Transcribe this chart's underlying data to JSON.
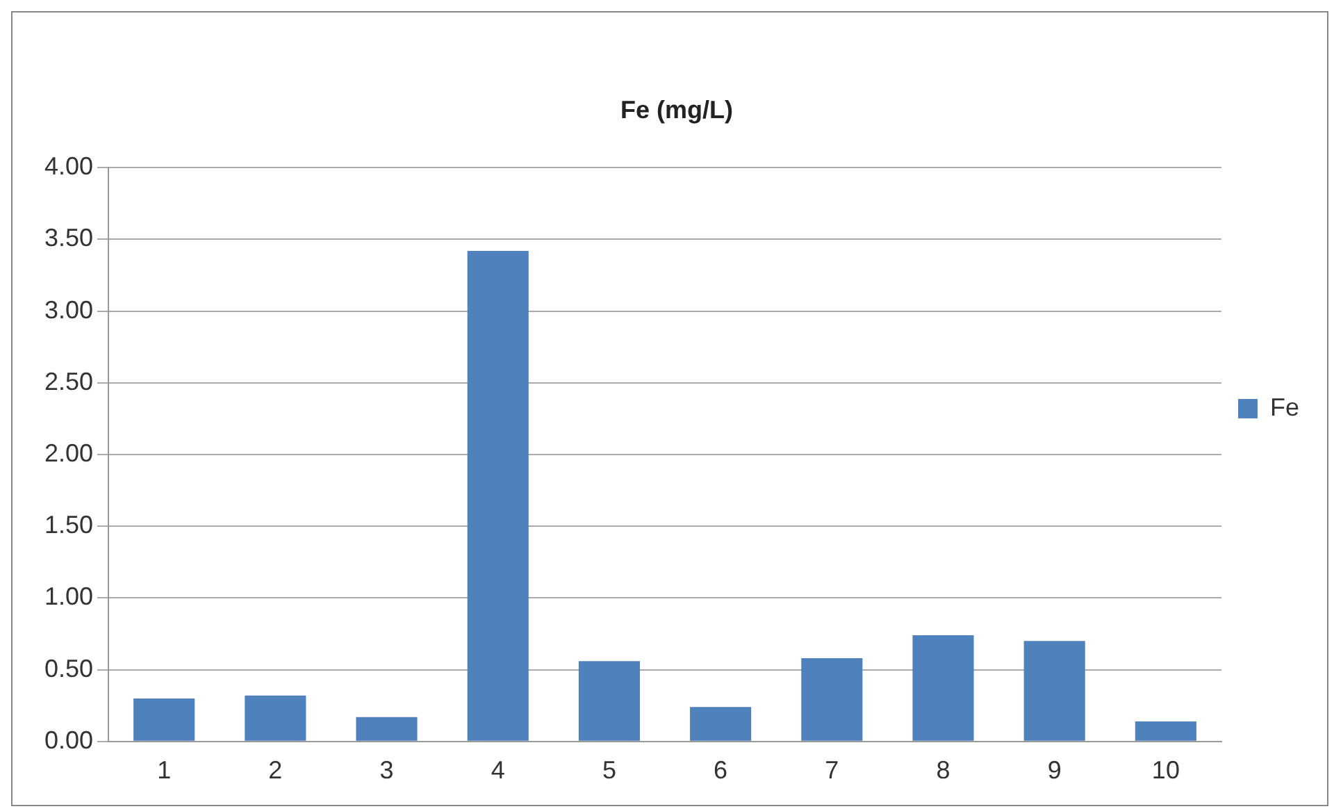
{
  "chart_data": {
    "type": "bar",
    "title": "Fe (mg/L)",
    "categories": [
      "1",
      "2",
      "3",
      "4",
      "5",
      "6",
      "7",
      "8",
      "9",
      "10"
    ],
    "series": [
      {
        "name": "Fe",
        "color": "#4f81bd",
        "values": [
          0.3,
          0.32,
          0.17,
          3.42,
          0.56,
          0.24,
          0.58,
          0.74,
          0.7,
          0.14
        ]
      }
    ],
    "ylim": [
      0,
      4
    ],
    "yticks": [
      {
        "value": 0,
        "label": "0.00"
      },
      {
        "value": 0.5,
        "label": "0.50"
      },
      {
        "value": 1,
        "label": "1.00"
      },
      {
        "value": 1.5,
        "label": "1.50"
      },
      {
        "value": 2,
        "label": "2.00"
      },
      {
        "value": 2.5,
        "label": "2.50"
      },
      {
        "value": 3,
        "label": "3.00"
      },
      {
        "value": 3.5,
        "label": "3.50"
      },
      {
        "value": 4,
        "label": "4.00"
      }
    ],
    "grid": "y",
    "legend": "right"
  }
}
